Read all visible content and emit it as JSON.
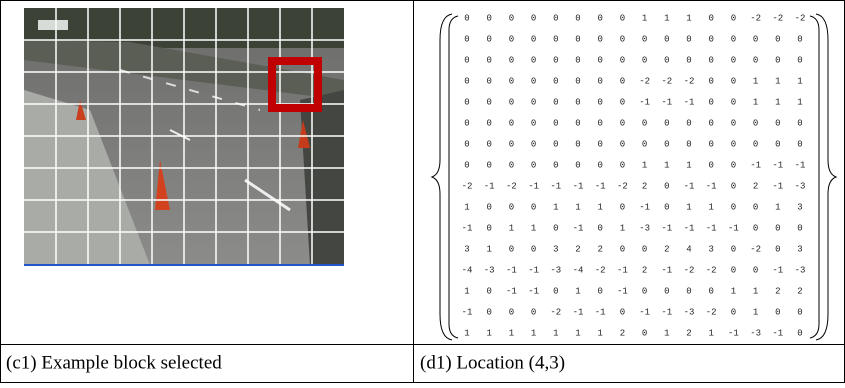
{
  "left": {
    "caption": "(c1) Example block selected"
  },
  "right": {
    "caption": "(d1) Location (4,3)",
    "matrix": [
      [
        0,
        0,
        0,
        0,
        0,
        0,
        0,
        0,
        1,
        1,
        1,
        0,
        0,
        -2,
        -2,
        -2
      ],
      [
        0,
        0,
        0,
        0,
        0,
        0,
        0,
        0,
        0,
        0,
        0,
        0,
        0,
        0,
        0,
        0
      ],
      [
        0,
        0,
        0,
        0,
        0,
        0,
        0,
        0,
        0,
        0,
        0,
        0,
        0,
        0,
        0,
        0
      ],
      [
        0,
        0,
        0,
        0,
        0,
        0,
        0,
        0,
        -2,
        -2,
        -2,
        0,
        0,
        1,
        1,
        1
      ],
      [
        0,
        0,
        0,
        0,
        0,
        0,
        0,
        0,
        -1,
        -1,
        -1,
        0,
        0,
        1,
        1,
        1
      ],
      [
        0,
        0,
        0,
        0,
        0,
        0,
        0,
        0,
        0,
        0,
        0,
        0,
        0,
        0,
        0,
        0
      ],
      [
        0,
        0,
        0,
        0,
        0,
        0,
        0,
        0,
        0,
        0,
        0,
        0,
        0,
        0,
        0,
        0
      ],
      [
        0,
        0,
        0,
        0,
        0,
        0,
        0,
        0,
        1,
        1,
        1,
        0,
        0,
        -1,
        -1,
        -1
      ],
      [
        -2,
        -1,
        -2,
        -1,
        -1,
        -1,
        -1,
        -2,
        2,
        0,
        -1,
        -1,
        0,
        2,
        -1,
        -3
      ],
      [
        1,
        0,
        0,
        0,
        1,
        1,
        1,
        0,
        -1,
        0,
        1,
        1,
        0,
        0,
        1,
        3
      ],
      [
        -1,
        0,
        1,
        1,
        0,
        -1,
        0,
        1,
        -3,
        -1,
        -1,
        -1,
        -1,
        0,
        0,
        0
      ],
      [
        3,
        1,
        0,
        0,
        3,
        2,
        2,
        0,
        0,
        2,
        4,
        3,
        0,
        -2,
        0,
        3
      ],
      [
        -4,
        -3,
        -1,
        -1,
        -3,
        -4,
        -2,
        -1,
        2,
        -1,
        -2,
        -2,
        0,
        0,
        -1,
        -3
      ],
      [
        1,
        0,
        -1,
        -1,
        0,
        1,
        0,
        -1,
        0,
        0,
        0,
        0,
        1,
        1,
        2,
        2
      ],
      [
        -1,
        0,
        0,
        0,
        -2,
        -1,
        -1,
        0,
        -1,
        -1,
        -3,
        -2,
        0,
        1,
        0,
        0
      ],
      [
        1,
        1,
        1,
        1,
        1,
        1,
        1,
        2,
        0,
        1,
        2,
        1,
        -1,
        -3,
        -1,
        0
      ]
    ]
  }
}
